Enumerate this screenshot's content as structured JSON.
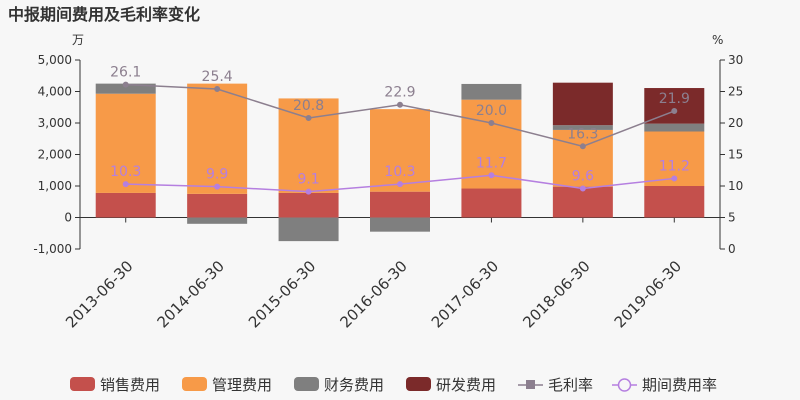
{
  "chart_data": {
    "type": "bar",
    "title": "中报期间费用及毛利率变化",
    "y_left_unit": "万",
    "y_right_unit": "%",
    "ylim_left": [
      -1000,
      5000
    ],
    "ylim_right": [
      0,
      30
    ],
    "y_left_ticks": [
      "-1,000",
      "0",
      "1,000",
      "2,000",
      "3,000",
      "4,000",
      "5,000"
    ],
    "y_right_ticks": [
      "0",
      "5",
      "10",
      "15",
      "20",
      "25",
      "30"
    ],
    "categories": [
      "2013-06-30",
      "2014-06-30",
      "2015-06-30",
      "2016-06-30",
      "2017-06-30",
      "2018-06-30",
      "2019-06-30"
    ],
    "series": [
      {
        "name": "销售费用",
        "kind": "bar",
        "color": "#c4504c",
        "values": [
          780,
          750,
          780,
          820,
          920,
          980,
          1000
        ]
      },
      {
        "name": "管理费用",
        "kind": "bar",
        "color": "#f79a48",
        "values": [
          3150,
          3500,
          3000,
          2620,
          2820,
          1800,
          1730
        ]
      },
      {
        "name": "财务费用",
        "kind": "bar",
        "color": "#7f7f7f",
        "values": [
          320,
          -200,
          -750,
          -450,
          500,
          150,
          250
        ]
      },
      {
        "name": "研发费用",
        "kind": "bar",
        "color": "#7b2a2a",
        "values": [
          0,
          0,
          0,
          0,
          0,
          1350,
          1130
        ]
      },
      {
        "name": "毛利率",
        "kind": "line",
        "axis": "right",
        "color": "#8c7f8f",
        "values": [
          26.1,
          25.4,
          20.8,
          22.9,
          20.0,
          16.3,
          21.9
        ],
        "labels": [
          "26.1",
          "25.4",
          "20.8",
          "22.9",
          "20.0",
          "16.3",
          "21.9"
        ]
      },
      {
        "name": "期间费用率",
        "kind": "line",
        "axis": "right",
        "color": "#b57fe0",
        "values": [
          10.3,
          9.9,
          9.1,
          10.3,
          11.7,
          9.6,
          11.2
        ],
        "labels": [
          "10.3",
          "9.9",
          "9.1",
          "10.3",
          "11.7",
          "9.6",
          "11.2"
        ]
      }
    ],
    "legend_position": "bottom",
    "grid": false
  }
}
